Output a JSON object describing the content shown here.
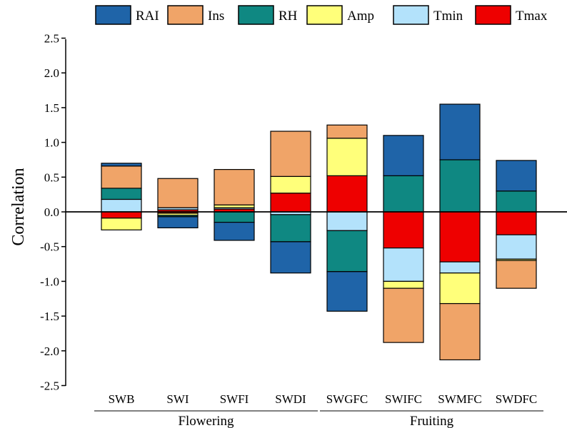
{
  "chart_data": {
    "type": "bar",
    "stacked": true,
    "ylabel": "Correlation",
    "ylim": [
      -2.5,
      2.5
    ],
    "yticks": [
      "2.5",
      "2.0",
      "1.5",
      "1.0",
      "0.5",
      "0.0",
      "-0.5",
      "-1.0",
      "-1.5",
      "-2.0",
      "-2.5"
    ],
    "ytick_values": [
      2.5,
      2.0,
      1.5,
      1.0,
      0.5,
      0.0,
      -0.5,
      -1.0,
      -1.5,
      -2.0,
      -2.5
    ],
    "categories": [
      "SWB",
      "SWI",
      "SWFI",
      "SWDI",
      "SWGFC",
      "SWIFC",
      "SWMFC",
      "SWDFC"
    ],
    "groups": [
      {
        "label": "Flowering",
        "categories": [
          "SWB",
          "SWI",
          "SWFI",
          "SWDI"
        ]
      },
      {
        "label": "Fruiting",
        "categories": [
          "SWGFC",
          "SWIFC",
          "SWMFC",
          "SWDFC"
        ]
      }
    ],
    "legend_position": "top",
    "stack_order": [
      "Tmax",
      "Tmin",
      "Amp",
      "RH",
      "Ins",
      "RAI"
    ],
    "series": [
      {
        "name": "RAI",
        "color": "#1f64a8",
        "values": [
          0.04,
          0.0,
          0.0,
          0.0,
          0.0,
          0.58,
          0.8,
          0.44
        ]
      },
      {
        "name": "Ins",
        "color": "#f0a468",
        "values": [
          0.32,
          0.42,
          0.51,
          0.65,
          0.19,
          0.0,
          0.0,
          0.0
        ]
      },
      {
        "name": "RH",
        "color": "#0f8882",
        "values": [
          0.16,
          0.0,
          0.0,
          0.0,
          0.0,
          0.52,
          0.75,
          0.3
        ]
      },
      {
        "name": "Amp",
        "color": "#ffff7a",
        "values": [
          0.0,
          0.0,
          0.04,
          0.24,
          0.54,
          0.0,
          0.0,
          0.0
        ]
      },
      {
        "name": "Tmin",
        "color": "#b3e2fb",
        "values": [
          0.18,
          0.03,
          0.02,
          0.0,
          0.0,
          0.0,
          0.0,
          0.0
        ]
      },
      {
        "name": "Tmax",
        "color": "#ee0000",
        "values": [
          0.0,
          0.03,
          0.04,
          0.27,
          0.52,
          0.0,
          0.0,
          0.0
        ]
      }
    ],
    "negative_series": [
      {
        "name": "Tmax",
        "color": "#ee0000",
        "values": [
          -0.09,
          -0.02,
          0.0,
          0.0,
          0.0,
          -0.52,
          -0.72,
          -0.33
        ]
      },
      {
        "name": "Tmin",
        "color": "#b3e2fb",
        "values": [
          0.0,
          0.0,
          0.0,
          -0.04,
          -0.27,
          -0.48,
          -0.16,
          -0.35
        ]
      },
      {
        "name": "Amp",
        "color": "#ffff7a",
        "values": [
          -0.17,
          -0.03,
          0.0,
          0.0,
          0.0,
          -0.1,
          -0.44,
          -0.02
        ]
      },
      {
        "name": "RH",
        "color": "#0f8882",
        "values": [
          0.0,
          -0.02,
          -0.15,
          -0.39,
          -0.59,
          0.0,
          0.0,
          0.0
        ]
      },
      {
        "name": "Ins",
        "color": "#f0a468",
        "values": [
          0.0,
          0.0,
          0.0,
          0.0,
          0.0,
          -0.78,
          -0.81,
          -0.4
        ]
      },
      {
        "name": "RAI",
        "color": "#1f64a8",
        "values": [
          0.0,
          -0.16,
          -0.26,
          -0.45,
          -0.57,
          0.0,
          0.0,
          0.0
        ]
      }
    ]
  }
}
